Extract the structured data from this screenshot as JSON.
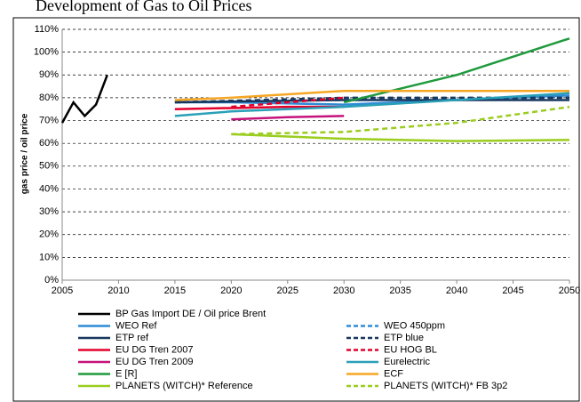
{
  "chart_data": {
    "type": "line",
    "title": "Development of Gas to Oil Prices",
    "ylabel": "gas price / oil price",
    "xlim": [
      2005,
      2050
    ],
    "xticks": [
      2005,
      2010,
      2015,
      2020,
      2025,
      2030,
      2035,
      2040,
      2045,
      2050
    ],
    "ylim": [
      0,
      110
    ],
    "yticks": [
      {
        "value": 0,
        "label": "0%"
      },
      {
        "value": 10,
        "label": "10%"
      },
      {
        "value": 20,
        "label": "20%"
      },
      {
        "value": 30,
        "label": "30%"
      },
      {
        "value": 40,
        "label": "40%"
      },
      {
        "value": 50,
        "label": "50%"
      },
      {
        "value": 60,
        "label": "60%"
      },
      {
        "value": 70,
        "label": "70%"
      },
      {
        "value": 80,
        "label": "80%"
      },
      {
        "value": 90,
        "label": "90%"
      },
      {
        "value": 100,
        "label": "100%"
      },
      {
        "value": 110,
        "label": "110%"
      }
    ],
    "grid": true,
    "legend": "bottom",
    "series": [
      {
        "name": "BP Gas Import DE / Oil price Brent",
        "color": "#000000",
        "dashed": false,
        "x": [
          2005,
          2006,
          2007,
          2008,
          2009
        ],
        "values": [
          69,
          78,
          72,
          77,
          90
        ]
      },
      {
        "name": "WEO Ref",
        "color": "#2e8bd6",
        "dashed": false,
        "x": [
          2015,
          2020,
          2030,
          2040,
          2050
        ],
        "values": [
          78,
          78,
          77,
          79,
          81
        ]
      },
      {
        "name": "WEO 450ppm",
        "color": "#2e8bd6",
        "dashed": true,
        "x": [
          2015,
          2030,
          2050
        ],
        "values": [
          78,
          79,
          80
        ]
      },
      {
        "name": "ETP ref",
        "color": "#17375e",
        "dashed": false,
        "x": [
          2015,
          2030,
          2050
        ],
        "values": [
          78,
          79,
          79
        ]
      },
      {
        "name": "ETP blue",
        "color": "#17375e",
        "dashed": true,
        "x": [
          2015,
          2030,
          2050
        ],
        "values": [
          78,
          80,
          80
        ]
      },
      {
        "name": "EU DG Tren 2007",
        "color": "#e3002b",
        "dashed": false,
        "x": [
          2015,
          2020,
          2025,
          2030
        ],
        "values": [
          75,
          75.5,
          76,
          76
        ]
      },
      {
        "name": "EU HOG BL",
        "color": "#e3002b",
        "dashed": true,
        "x": [
          2020,
          2025,
          2030
        ],
        "values": [
          76,
          78,
          80
        ]
      },
      {
        "name": "EU DG Tren 2009",
        "color": "#c4127a",
        "dashed": false,
        "x": [
          2020,
          2025,
          2030
        ],
        "values": [
          70.5,
          71.5,
          72
        ]
      },
      {
        "name": "Eurelectric",
        "color": "#2aa0b8",
        "dashed": false,
        "x": [
          2015,
          2020,
          2030,
          2040,
          2050
        ],
        "values": [
          72,
          74,
          76,
          79,
          82
        ]
      },
      {
        "name": "E [R]",
        "color": "#1f9a3c",
        "dashed": false,
        "x": [
          2030,
          2040,
          2050
        ],
        "values": [
          78,
          90,
          106
        ]
      },
      {
        "name": "ECF",
        "color": "#f5a623",
        "dashed": false,
        "x": [
          2015,
          2020,
          2030,
          2040,
          2050
        ],
        "values": [
          79,
          80,
          83,
          83,
          83
        ]
      },
      {
        "name": "PLANETS (WITCH)* Reference",
        "color": "#9acd1e",
        "dashed": false,
        "x": [
          2020,
          2030,
          2040,
          2050
        ],
        "values": [
          64,
          62,
          61,
          61.5
        ]
      },
      {
        "name": "PLANETS (WITCH)* FB 3p2",
        "color": "#9acd1e",
        "dashed": true,
        "x": [
          2020,
          2030,
          2040,
          2050
        ],
        "values": [
          64,
          65,
          69,
          76
        ]
      }
    ]
  }
}
